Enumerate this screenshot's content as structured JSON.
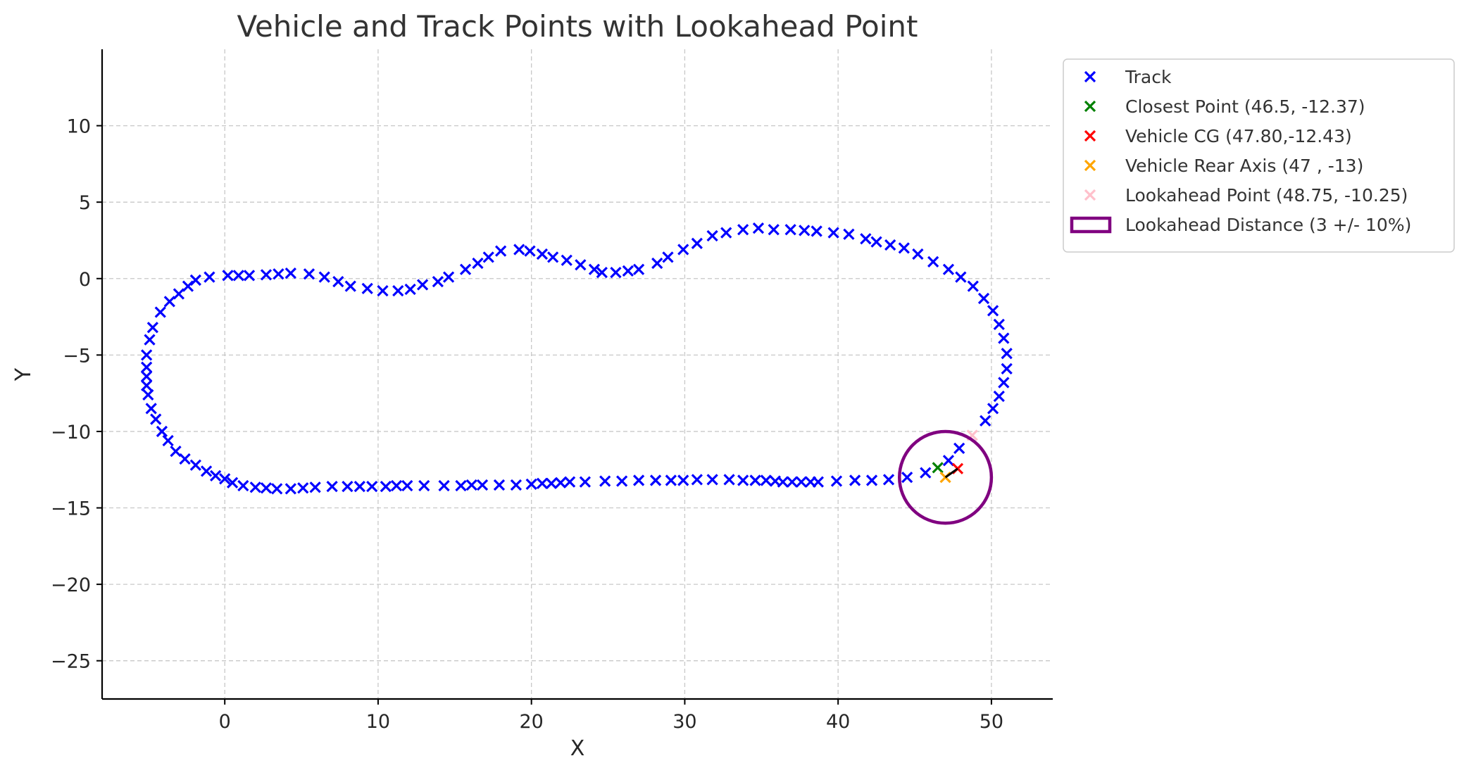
{
  "chart_data": {
    "type": "scatter",
    "title": "Vehicle and Track Points with Lookahead Point",
    "xlabel": "X",
    "ylabel": "Y",
    "xlim": [
      -8,
      54
    ],
    "ylim": [
      -27.5,
      15
    ],
    "xticks": [
      0,
      10,
      20,
      30,
      40,
      50
    ],
    "yticks": [
      10,
      5,
      0,
      -5,
      -10,
      -15,
      -20,
      -25
    ],
    "xtick_labels": [
      "0",
      "10",
      "20",
      "30",
      "40",
      "50"
    ],
    "ytick_labels": [
      "10",
      "5",
      "0",
      "−5",
      "−10",
      "−15",
      "−20",
      "−25"
    ],
    "grid": true,
    "legend_position": "outside-top-right",
    "series": [
      {
        "name": "Track",
        "marker": "x",
        "color": "#0000ff",
        "points": [
          [
            47.9,
            -11.1
          ],
          [
            47.2,
            -11.9
          ],
          [
            45.7,
            -12.7
          ],
          [
            44.5,
            -13.0
          ],
          [
            43.3,
            -13.15
          ],
          [
            42.2,
            -13.2
          ],
          [
            41.1,
            -13.2
          ],
          [
            39.9,
            -13.25
          ],
          [
            38.7,
            -13.3
          ],
          [
            38.2,
            -13.3
          ],
          [
            37.6,
            -13.3
          ],
          [
            37.0,
            -13.3
          ],
          [
            36.4,
            -13.3
          ],
          [
            35.9,
            -13.25
          ],
          [
            35.3,
            -13.2
          ],
          [
            34.6,
            -13.2
          ],
          [
            33.8,
            -13.2
          ],
          [
            32.9,
            -13.15
          ],
          [
            31.8,
            -13.15
          ],
          [
            30.8,
            -13.15
          ],
          [
            29.9,
            -13.2
          ],
          [
            29.1,
            -13.2
          ],
          [
            28.1,
            -13.2
          ],
          [
            27.0,
            -13.2
          ],
          [
            25.9,
            -13.25
          ],
          [
            24.8,
            -13.25
          ],
          [
            23.5,
            -13.3
          ],
          [
            22.5,
            -13.3
          ],
          [
            21.9,
            -13.35
          ],
          [
            21.3,
            -13.4
          ],
          [
            20.7,
            -13.4
          ],
          [
            20.0,
            -13.45
          ],
          [
            19.0,
            -13.5
          ],
          [
            17.9,
            -13.5
          ],
          [
            16.8,
            -13.5
          ],
          [
            16.1,
            -13.5
          ],
          [
            15.4,
            -13.55
          ],
          [
            14.3,
            -13.55
          ],
          [
            13.0,
            -13.55
          ],
          [
            11.9,
            -13.55
          ],
          [
            11.2,
            -13.55
          ],
          [
            10.5,
            -13.6
          ],
          [
            9.6,
            -13.6
          ],
          [
            8.8,
            -13.6
          ],
          [
            8.0,
            -13.6
          ],
          [
            7.0,
            -13.6
          ],
          [
            5.9,
            -13.65
          ],
          [
            5.1,
            -13.7
          ],
          [
            4.3,
            -13.75
          ],
          [
            3.4,
            -13.75
          ],
          [
            2.7,
            -13.7
          ],
          [
            2.0,
            -13.65
          ],
          [
            1.2,
            -13.55
          ],
          [
            0.5,
            -13.35
          ],
          [
            0.0,
            -13.1
          ],
          [
            -0.6,
            -12.9
          ],
          [
            -1.2,
            -12.6
          ],
          [
            -1.9,
            -12.2
          ],
          [
            -2.6,
            -11.8
          ],
          [
            -3.2,
            -11.3
          ],
          [
            -3.7,
            -10.6
          ],
          [
            -4.1,
            -10.0
          ],
          [
            -4.5,
            -9.2
          ],
          [
            -4.8,
            -8.5
          ],
          [
            -5.0,
            -7.6
          ],
          [
            -5.1,
            -7.0
          ],
          [
            -5.1,
            -6.4
          ],
          [
            -5.1,
            -5.8
          ],
          [
            -5.1,
            -5.0
          ],
          [
            -4.9,
            -4.0
          ],
          [
            -4.7,
            -3.2
          ],
          [
            -4.2,
            -2.2
          ],
          [
            -3.6,
            -1.5
          ],
          [
            -3.0,
            -1.0
          ],
          [
            -2.4,
            -0.5
          ],
          [
            -1.9,
            -0.1
          ],
          [
            -1.0,
            0.1
          ],
          [
            0.2,
            0.2
          ],
          [
            0.9,
            0.2
          ],
          [
            1.6,
            0.2
          ],
          [
            2.7,
            0.25
          ],
          [
            3.5,
            0.3
          ],
          [
            4.3,
            0.35
          ],
          [
            5.5,
            0.3
          ],
          [
            6.5,
            0.1
          ],
          [
            7.4,
            -0.2
          ],
          [
            8.2,
            -0.5
          ],
          [
            9.3,
            -0.65
          ],
          [
            10.3,
            -0.8
          ],
          [
            11.3,
            -0.8
          ],
          [
            12.1,
            -0.7
          ],
          [
            12.9,
            -0.4
          ],
          [
            13.9,
            -0.2
          ],
          [
            14.6,
            0.1
          ],
          [
            15.7,
            0.6
          ],
          [
            16.5,
            1.0
          ],
          [
            17.2,
            1.4
          ],
          [
            18.0,
            1.8
          ],
          [
            19.2,
            1.9
          ],
          [
            19.9,
            1.8
          ],
          [
            20.7,
            1.6
          ],
          [
            21.4,
            1.4
          ],
          [
            22.3,
            1.2
          ],
          [
            23.2,
            0.9
          ],
          [
            24.1,
            0.6
          ],
          [
            24.6,
            0.4
          ],
          [
            25.5,
            0.4
          ],
          [
            26.3,
            0.5
          ],
          [
            27.0,
            0.6
          ],
          [
            28.2,
            1.0
          ],
          [
            28.9,
            1.4
          ],
          [
            29.9,
            1.9
          ],
          [
            30.8,
            2.3
          ],
          [
            31.8,
            2.8
          ],
          [
            32.7,
            3.0
          ],
          [
            33.8,
            3.2
          ],
          [
            34.8,
            3.3
          ],
          [
            35.8,
            3.2
          ],
          [
            36.9,
            3.2
          ],
          [
            37.8,
            3.15
          ],
          [
            38.6,
            3.1
          ],
          [
            39.7,
            3.0
          ],
          [
            40.7,
            2.9
          ],
          [
            41.8,
            2.6
          ],
          [
            42.5,
            2.4
          ],
          [
            43.4,
            2.2
          ],
          [
            44.3,
            2.0
          ],
          [
            45.2,
            1.6
          ],
          [
            46.2,
            1.1
          ],
          [
            47.2,
            0.6
          ],
          [
            48.0,
            0.1
          ],
          [
            48.8,
            -0.5
          ],
          [
            49.5,
            -1.3
          ],
          [
            50.1,
            -2.1
          ],
          [
            50.5,
            -3.0
          ],
          [
            50.8,
            -3.9
          ],
          [
            51.0,
            -4.9
          ],
          [
            51.0,
            -5.9
          ],
          [
            50.8,
            -6.8
          ],
          [
            50.5,
            -7.7
          ],
          [
            50.1,
            -8.5
          ],
          [
            49.6,
            -9.3
          ]
        ]
      },
      {
        "name": "Closest Point (46.5, -12.37)",
        "marker": "x",
        "color": "#008000",
        "points": [
          [
            46.5,
            -12.37
          ]
        ]
      },
      {
        "name": "Vehicle CG (47.80,-12.43)",
        "marker": "x",
        "color": "#ff0000",
        "points": [
          [
            47.8,
            -12.43
          ]
        ]
      },
      {
        "name": "Vehicle Rear Axis (47 , -13)",
        "marker": "x",
        "color": "#ffa500",
        "points": [
          [
            47.0,
            -13.0
          ]
        ]
      },
      {
        "name": "Lookahead Point (48.75, -10.25)",
        "marker": "x",
        "color": "#ffc0cb",
        "points": [
          [
            48.75,
            -10.25
          ]
        ]
      }
    ],
    "circle": {
      "name": "Lookahead Distance (3 +/- 10%)",
      "center": [
        47,
        -13
      ],
      "radius": 3,
      "color": "#800080"
    },
    "heading_segment": {
      "from": [
        47.0,
        -13.0
      ],
      "to": [
        47.8,
        -12.43
      ],
      "color": "#000000"
    }
  }
}
